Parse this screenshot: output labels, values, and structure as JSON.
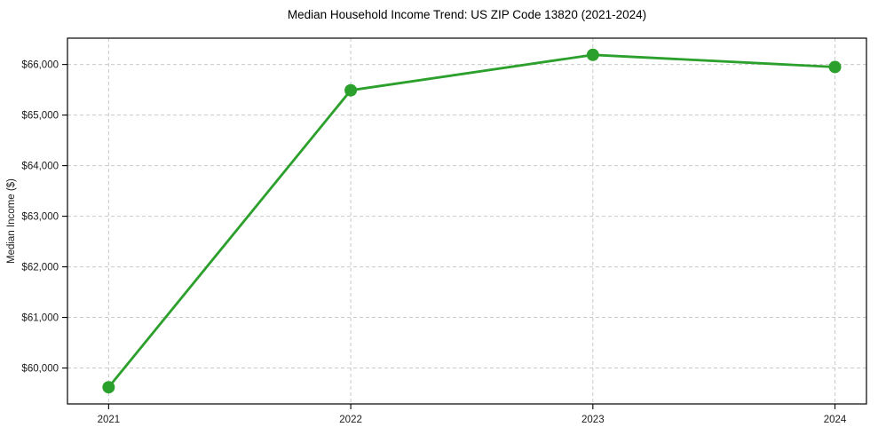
{
  "figure": {
    "background": "#ffffff"
  },
  "chart_data": {
    "type": "line",
    "title": "Median Household Income Trend: US ZIP Code 13820 (2021-2024)",
    "xlabel": "",
    "ylabel": "Median Income ($)",
    "x": [
      2021,
      2022,
      2023,
      2024
    ],
    "x_tick_labels": [
      "2021",
      "2022",
      "2023",
      "2024"
    ],
    "y_ticks": [
      60000,
      61000,
      62000,
      63000,
      64000,
      65000,
      66000
    ],
    "y_tick_labels": [
      "$60,000",
      "$61,000",
      "$62,000",
      "$63,000",
      "$64,000",
      "$65,000",
      "$66,000"
    ],
    "series": [
      {
        "name": "Median Household Income",
        "values": [
          59620,
          65490,
          66190,
          65950
        ],
        "color": "#2ca02c",
        "marker": "circle"
      }
    ],
    "xlim": [
      2020.83,
      2024.13
    ],
    "ylim": [
      59290,
      66520
    ],
    "grid": true,
    "grid_style": "dashed",
    "legend_position": "none"
  },
  "style": {
    "line_color": "#2ca02c",
    "grid_color": "#c9c9c9",
    "axis_color": "#000000",
    "text_color": "#1a1a1a"
  }
}
